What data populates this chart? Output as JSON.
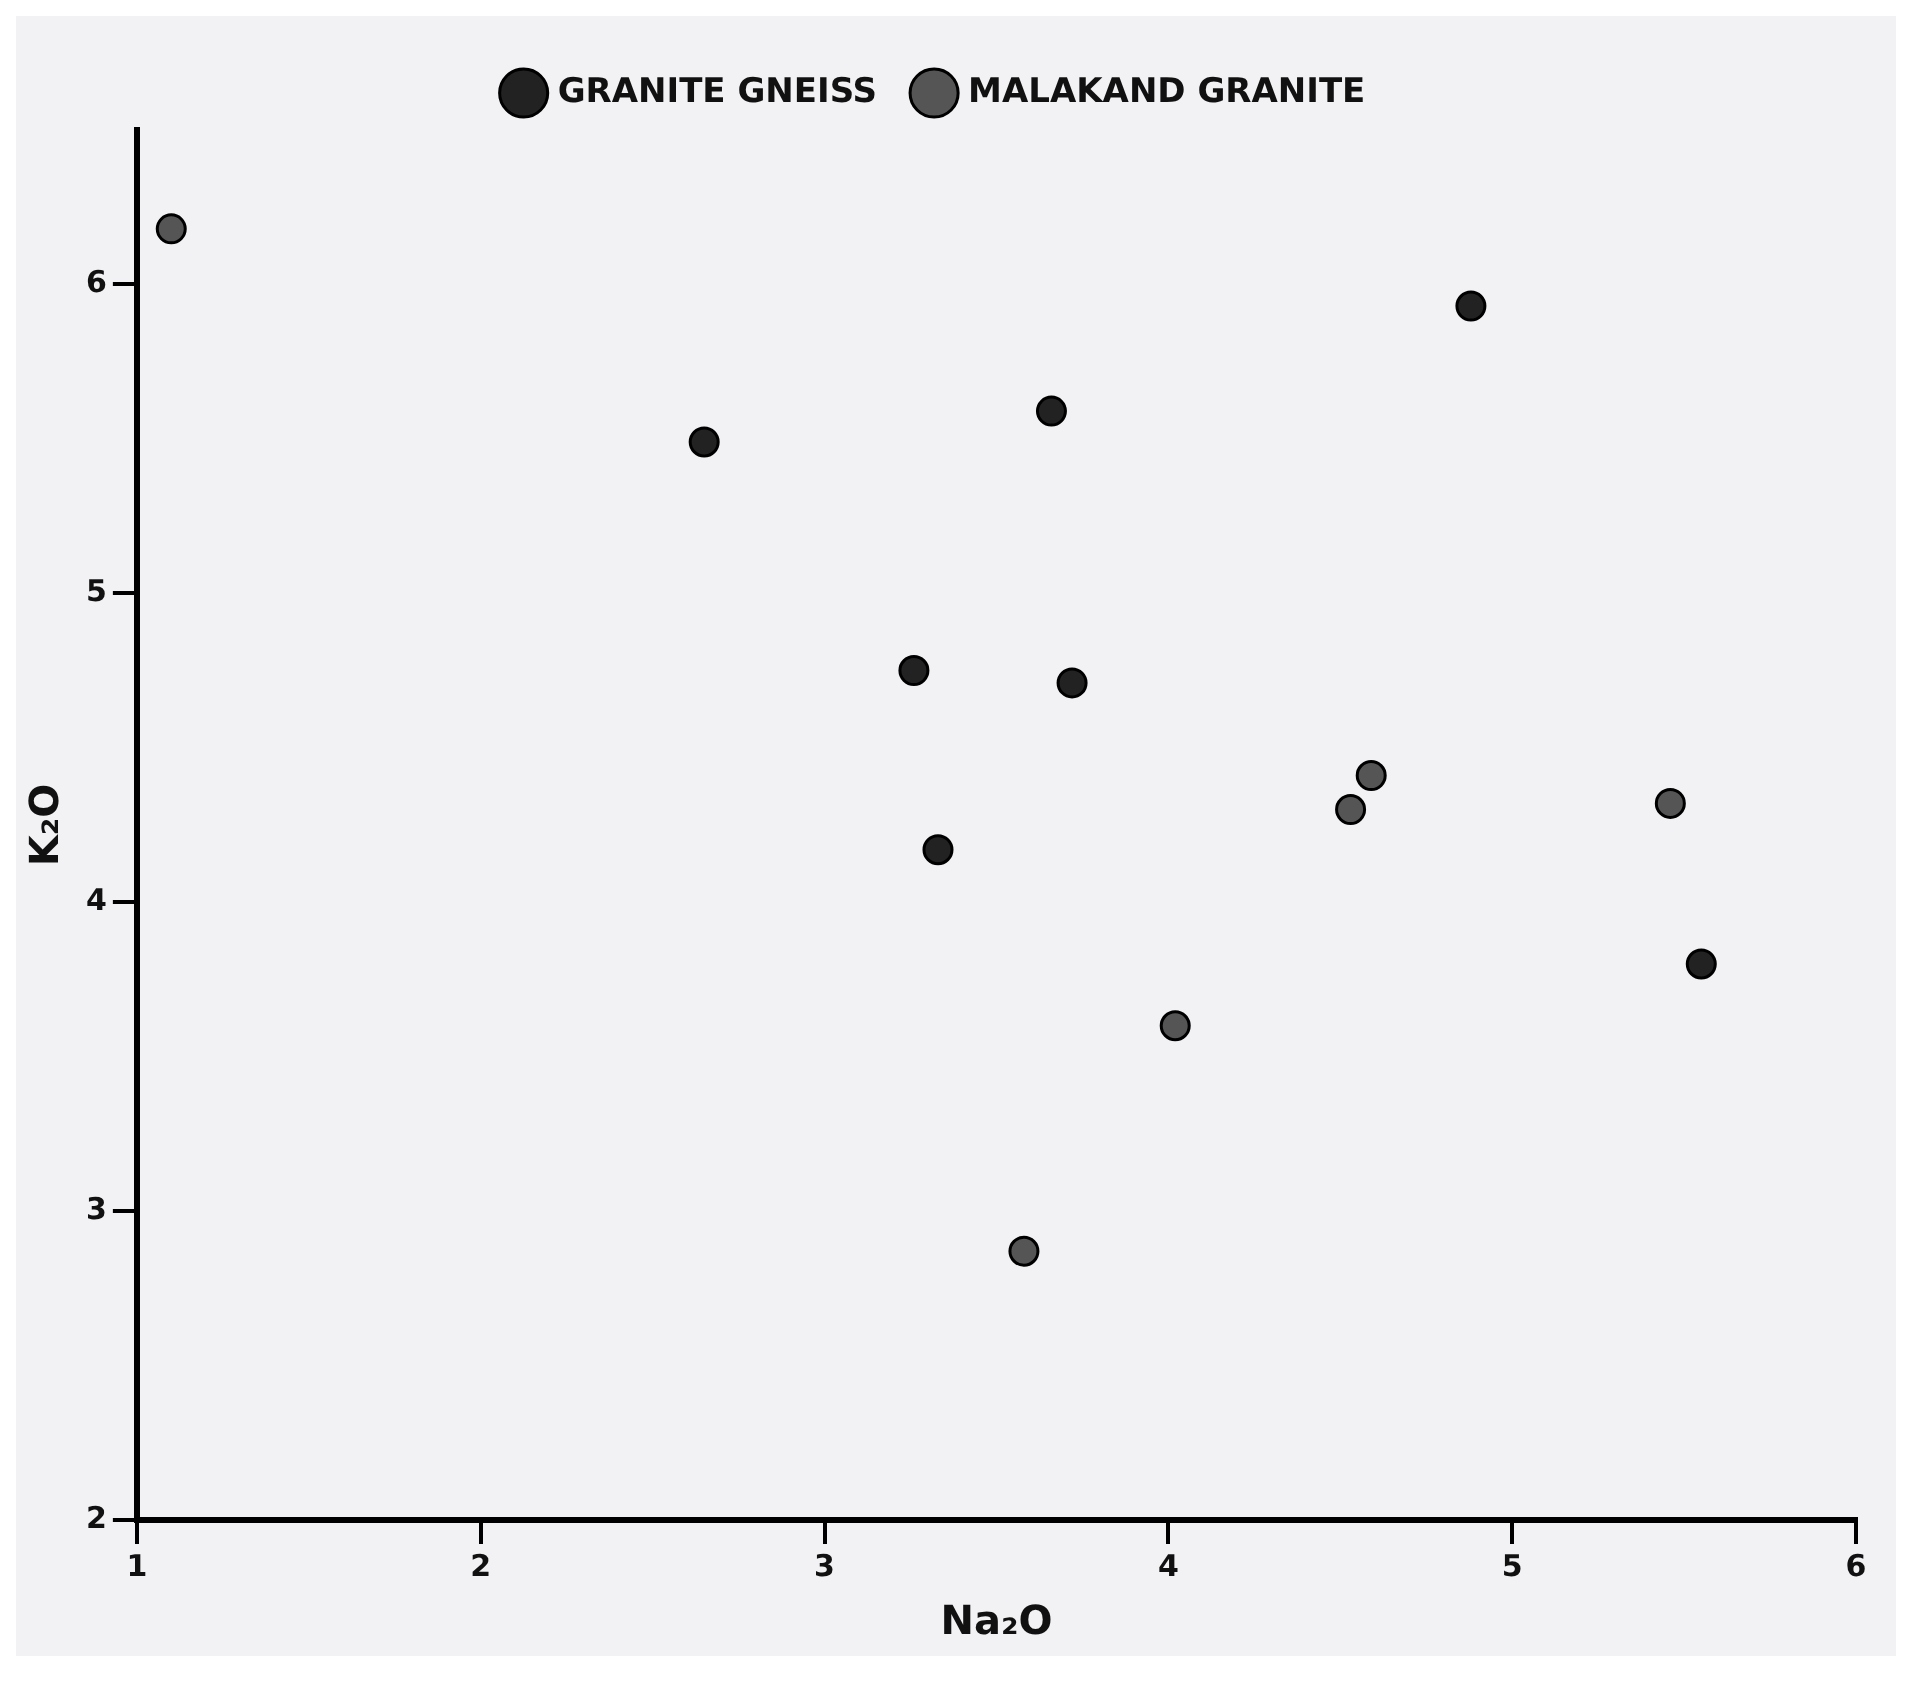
{
  "chart_data": {
    "type": "scatter",
    "xlabel": "Na₂O",
    "ylabel": "K₂O",
    "xlim": [
      1,
      6
    ],
    "ylim": [
      2,
      6.5
    ],
    "xticks": [
      1,
      2,
      3,
      4,
      5,
      6
    ],
    "yticks": [
      2,
      3,
      4,
      5,
      6
    ],
    "grid": false,
    "legend": "top",
    "marker": "circle",
    "series": [
      {
        "name": "GRANITE GNEISS",
        "color": "#222222",
        "x": [
          2.65,
          3.66,
          4.88,
          3.26,
          3.72,
          3.33,
          5.55
        ],
        "values": [
          5.49,
          5.59,
          5.93,
          4.75,
          4.71,
          4.17,
          3.8
        ]
      },
      {
        "name": "MALAKAND GRANITE",
        "color": "#555555",
        "x": [
          1.1,
          4.53,
          4.59,
          5.46,
          4.02,
          3.58
        ],
        "values": [
          6.18,
          4.3,
          4.41,
          4.32,
          3.6,
          2.87
        ]
      }
    ]
  }
}
